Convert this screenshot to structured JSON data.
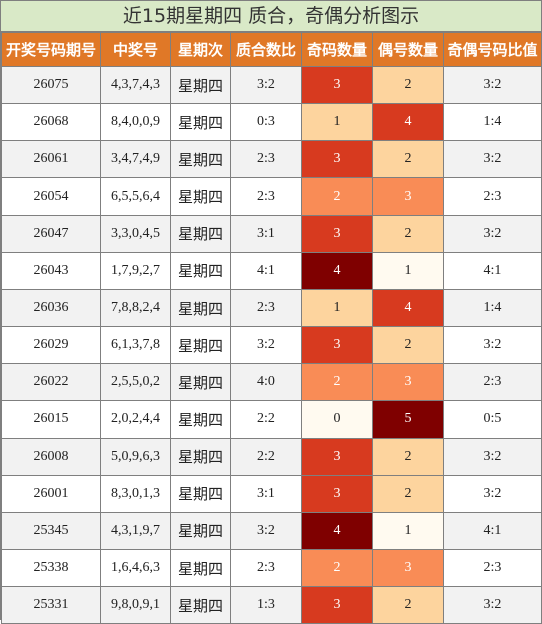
{
  "title": "近15期星期四 质合，奇偶分析图示",
  "headers": [
    "开奖号码期号",
    "中奖号",
    "星期次",
    "质合数比",
    "奇码数量",
    "偶号数量",
    "奇偶号码比值"
  ],
  "rows": [
    {
      "issue": "26075",
      "numbers": "4,3,7,4,3",
      "weekday": "星期四",
      "prime_ratio": "3:2",
      "odd": "3",
      "even": "2",
      "odd_even_ratio": "3:2",
      "odd_style": "c3b",
      "even_style": "c2"
    },
    {
      "issue": "26068",
      "numbers": "8,4,0,0,9",
      "weekday": "星期四",
      "prime_ratio": "0:3",
      "odd": "1",
      "even": "4",
      "odd_even_ratio": "1:4",
      "odd_style": "c2",
      "even_style": "c3b"
    },
    {
      "issue": "26061",
      "numbers": "3,4,7,4,9",
      "weekday": "星期四",
      "prime_ratio": "2:3",
      "odd": "3",
      "even": "2",
      "odd_even_ratio": "3:2",
      "odd_style": "c3b",
      "even_style": "c2"
    },
    {
      "issue": "26054",
      "numbers": "6,5,5,6,4",
      "weekday": "星期四",
      "prime_ratio": "2:3",
      "odd": "2",
      "even": "3",
      "odd_even_ratio": "2:3",
      "odd_style": "c3",
      "even_style": "c3"
    },
    {
      "issue": "26047",
      "numbers": "3,3,0,4,5",
      "weekday": "星期四",
      "prime_ratio": "3:1",
      "odd": "3",
      "even": "2",
      "odd_even_ratio": "3:2",
      "odd_style": "c3b",
      "even_style": "c2"
    },
    {
      "issue": "26043",
      "numbers": "1,7,9,2,7",
      "weekday": "星期四",
      "prime_ratio": "4:1",
      "odd": "4",
      "even": "1",
      "odd_even_ratio": "4:1",
      "odd_style": "c4",
      "even_style": "c1"
    },
    {
      "issue": "26036",
      "numbers": "7,8,8,2,4",
      "weekday": "星期四",
      "prime_ratio": "2:3",
      "odd": "1",
      "even": "4",
      "odd_even_ratio": "1:4",
      "odd_style": "c2",
      "even_style": "c3b"
    },
    {
      "issue": "26029",
      "numbers": "6,1,3,7,8",
      "weekday": "星期四",
      "prime_ratio": "3:2",
      "odd": "3",
      "even": "2",
      "odd_even_ratio": "3:2",
      "odd_style": "c3b",
      "even_style": "c2"
    },
    {
      "issue": "26022",
      "numbers": "2,5,5,0,2",
      "weekday": "星期四",
      "prime_ratio": "4:0",
      "odd": "2",
      "even": "3",
      "odd_even_ratio": "2:3",
      "odd_style": "c3",
      "even_style": "c3"
    },
    {
      "issue": "26015",
      "numbers": "2,0,2,4,4",
      "weekday": "星期四",
      "prime_ratio": "2:2",
      "odd": "0",
      "even": "5",
      "odd_even_ratio": "0:5",
      "odd_style": "c0",
      "even_style": "c5"
    },
    {
      "issue": "26008",
      "numbers": "5,0,9,6,3",
      "weekday": "星期四",
      "prime_ratio": "2:2",
      "odd": "3",
      "even": "2",
      "odd_even_ratio": "3:2",
      "odd_style": "c3b",
      "even_style": "c2"
    },
    {
      "issue": "26001",
      "numbers": "8,3,0,1,3",
      "weekday": "星期四",
      "prime_ratio": "3:1",
      "odd": "3",
      "even": "2",
      "odd_even_ratio": "3:2",
      "odd_style": "c3b",
      "even_style": "c2"
    },
    {
      "issue": "25345",
      "numbers": "4,3,1,9,7",
      "weekday": "星期四",
      "prime_ratio": "3:2",
      "odd": "4",
      "even": "1",
      "odd_even_ratio": "4:1",
      "odd_style": "c4",
      "even_style": "c1"
    },
    {
      "issue": "25338",
      "numbers": "1,6,4,6,3",
      "weekday": "星期四",
      "prime_ratio": "2:3",
      "odd": "2",
      "even": "3",
      "odd_even_ratio": "2:3",
      "odd_style": "c3",
      "even_style": "c3"
    },
    {
      "issue": "25331",
      "numbers": "9,8,0,9,1",
      "weekday": "星期四",
      "prime_ratio": "1:3",
      "odd": "3",
      "even": "2",
      "odd_even_ratio": "3:2",
      "odd_style": "c3b",
      "even_style": "c2"
    }
  ],
  "colors": {
    "header_bg": "#e07827",
    "title_bg": "#d9e9c7",
    "scale_low": "#fffaf0",
    "scale_mid": "#fdd49e",
    "scale_high": "#d73a1f",
    "scale_max": "#7f0000"
  }
}
